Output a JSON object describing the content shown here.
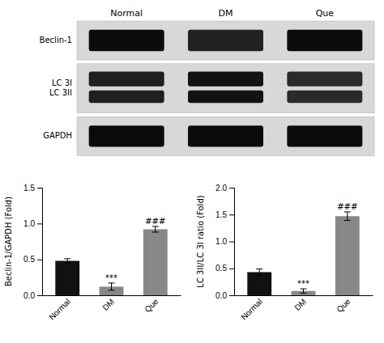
{
  "chart_data": [
    {
      "type": "blot",
      "categories": [
        "Normal",
        "DM",
        "Que"
      ],
      "rows": [
        "Beclin-1",
        "LC 3I\nLC 3II",
        "GAPDH"
      ],
      "cells": [
        [
          0.85,
          0.55,
          0.85
        ],
        [
          0.6,
          0.75,
          0.45
        ],
        [
          0.85,
          0.85,
          0.85
        ]
      ]
    },
    {
      "type": "bar",
      "categories": [
        "Normal",
        "DM",
        "Que"
      ],
      "values": [
        0.48,
        0.12,
        0.92
      ],
      "errors": [
        0.03,
        0.05,
        0.04
      ],
      "colors": [
        "#111111",
        "#888888",
        "#888888"
      ],
      "ylabel": "Beclin-1/GAPDH (Fold)",
      "ylim": [
        0,
        1.5
      ],
      "yticks": [
        {
          "value": 0,
          "label": "0.0"
        },
        0.5,
        {
          "value": 1,
          "label": "1.0"
        },
        1.5
      ],
      "annotations": [
        {
          "text": "***",
          "x": "DM"
        },
        {
          "text": "###",
          "x": "Que"
        }
      ]
    },
    {
      "type": "bar",
      "categories": [
        "Normal",
        "DM",
        "Que"
      ],
      "values": [
        0.43,
        0.08,
        1.47
      ],
      "errors": [
        0.06,
        0.04,
        0.08
      ],
      "colors": [
        "#111111",
        "#888888",
        "#888888"
      ],
      "ylabel": "LC 3II/LC 3I ratio (Fold)",
      "ylim": [
        0,
        2.0
      ],
      "yticks": [
        {
          "value": 0,
          "label": "0.0"
        },
        0.5,
        {
          "value": 1,
          "label": "1.0"
        },
        1.5,
        {
          "value": 2,
          "label": "2.0"
        }
      ],
      "annotations": [
        {
          "text": "***",
          "x": "DM"
        },
        {
          "text": "###",
          "x": "Que"
        }
      ]
    }
  ]
}
